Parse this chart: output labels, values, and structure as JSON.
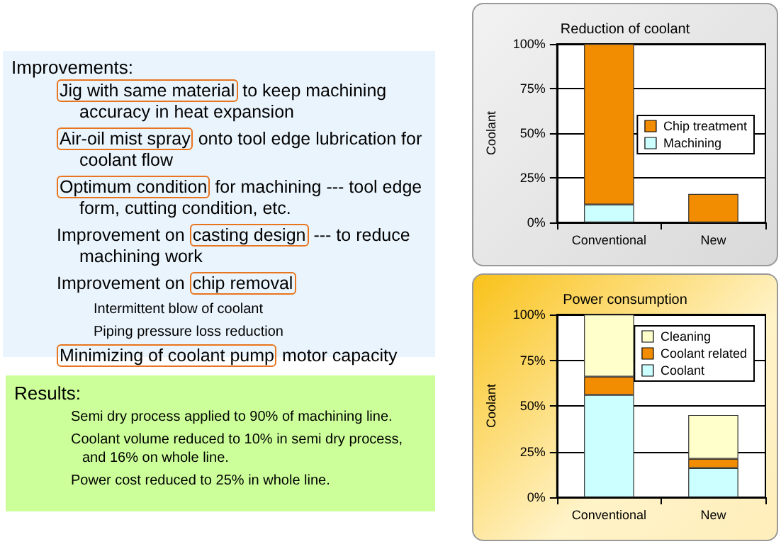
{
  "chart_data": [
    {
      "type": "other",
      "title": "Improvements:",
      "annotations": [
        "Jig with same material",
        "to keep machining accuracy in heat expansion",
        "Air-oil mist spray",
        "onto tool edge lubrication for coolant flow",
        "Optimum condition",
        "for machining --- tool edge form, cutting condition, etc.",
        "Improvement on",
        "casting design",
        "--- to reduce machining work",
        "Improvement on",
        "chip removal",
        "Intermittent blow of coolant",
        "Piping pressure loss reduction",
        "Minimizing of coolant pump",
        "motor capacity"
      ]
    },
    {
      "type": "other",
      "title": "Results:",
      "annotations": [
        "Semi dry process applied to 90% of machining line.",
        "Coolant volume reduced to 10% in semi dry process, and 16% on whole line.",
        "Power cost reduced to 25% in whole line."
      ]
    },
    {
      "type": "bar",
      "title": "Reduction of coolant",
      "ylabel": "Coolant",
      "categories": [
        "Conventional",
        "New"
      ],
      "stacked": true,
      "ylim": [
        0,
        100
      ],
      "yticks": [
        {
          "value": 0,
          "label": "0%"
        },
        {
          "value": 25,
          "label": "25%"
        },
        {
          "value": 50,
          "label": "50%"
        },
        {
          "value": 75,
          "label": "75%"
        },
        {
          "value": 100,
          "label": "100%"
        }
      ],
      "grid": "y",
      "legend": "right",
      "series": [
        {
          "name": "Machining",
          "color": "#ccffff",
          "values": [
            10,
            0
          ]
        },
        {
          "name": "Chip treatment",
          "color": "#f28c00",
          "values": [
            90,
            16
          ]
        }
      ]
    },
    {
      "type": "bar",
      "title": "Power consumption",
      "ylabel": "Coolant",
      "categories": [
        "Conventional",
        "New"
      ],
      "stacked": true,
      "ylim": [
        0,
        100
      ],
      "yticks": [
        {
          "value": 0,
          "label": "0%"
        },
        {
          "value": 25,
          "label": "25%"
        },
        {
          "value": 50,
          "label": "50%"
        },
        {
          "value": 75,
          "label": "75%"
        },
        {
          "value": 100,
          "label": "100%"
        }
      ],
      "grid": "y",
      "legend": "top right",
      "series": [
        {
          "name": "Coolant",
          "color": "#ccffff",
          "values": [
            56,
            16
          ]
        },
        {
          "name": "Coolant related",
          "color": "#f28c00",
          "values": [
            10,
            5
          ]
        },
        {
          "name": "Cleaning",
          "color": "#ffffcc",
          "values": [
            34,
            24
          ]
        }
      ]
    }
  ]
}
